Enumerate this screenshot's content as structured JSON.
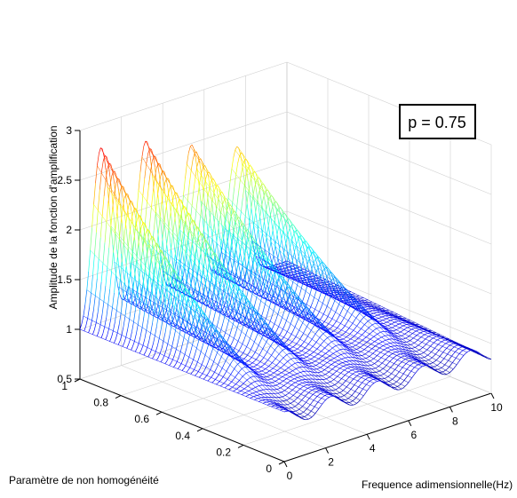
{
  "chart_data": {
    "type": "surface-mesh-3d",
    "xlabel": "Frequence adimensionnelle(Hz)",
    "ylabel": "Paramètre de non homogénéité",
    "zlabel": "Amplitude de la fonction d'amplification",
    "xlim": [
      0,
      10
    ],
    "ylim": [
      0,
      1
    ],
    "zlim": [
      0.5,
      3
    ],
    "xticks": [
      "0",
      "2",
      "4",
      "6",
      "8",
      "10"
    ],
    "yticks": [
      "0",
      "0.2",
      "0.4",
      "0.6",
      "0.8",
      "1"
    ],
    "zticks": [
      "0.5",
      "1",
      "1.5",
      "2",
      "2.5",
      "3"
    ],
    "annotation": "p = 0.75",
    "grid": true,
    "colormap": "jet",
    "resonance_peaks_hz": [
      1.0,
      3.2,
      5.4,
      7.6
    ],
    "peak_amplitude_at_y1": [
      2.97,
      3.0,
      3.0,
      3.0
    ],
    "peak_amplitude_at_y0": [
      1.0,
      1.0,
      1.0,
      1.0
    ],
    "trough_amplitude_at_y1": [
      2.65,
      2.75,
      2.75
    ]
  }
}
